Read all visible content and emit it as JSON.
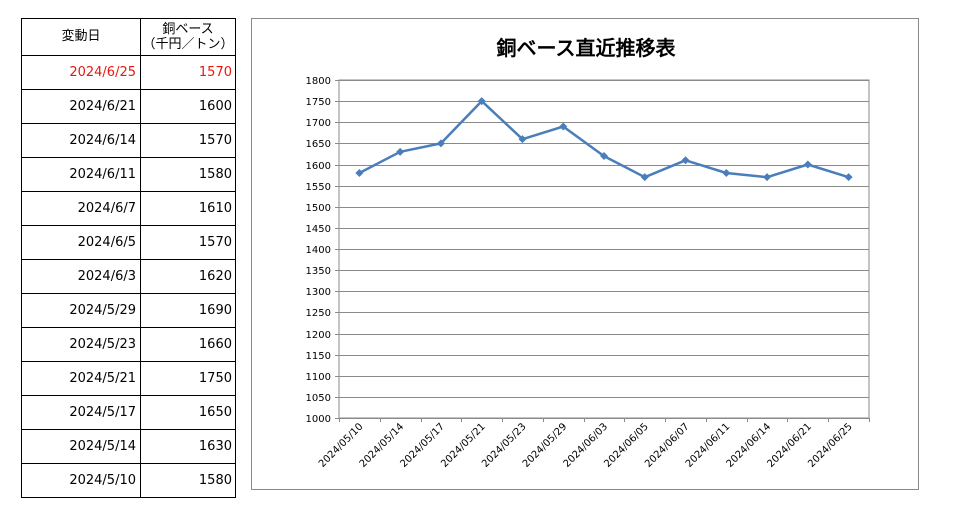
{
  "table": {
    "header_date": "変動日",
    "header_value_line1": "銅ベース",
    "header_value_line2": "（千円／トン）",
    "rows": [
      {
        "date": "2024/6/25",
        "value": "1570"
      },
      {
        "date": "2024/6/21",
        "value": "1600"
      },
      {
        "date": "2024/6/14",
        "value": "1570"
      },
      {
        "date": "2024/6/11",
        "value": "1580"
      },
      {
        "date": "2024/6/7",
        "value": "1610"
      },
      {
        "date": "2024/6/5",
        "value": "1570"
      },
      {
        "date": "2024/6/3",
        "value": "1620"
      },
      {
        "date": "2024/5/29",
        "value": "1690"
      },
      {
        "date": "2024/5/23",
        "value": "1660"
      },
      {
        "date": "2024/5/21",
        "value": "1750"
      },
      {
        "date": "2024/5/17",
        "value": "1650"
      },
      {
        "date": "2024/5/14",
        "value": "1630"
      },
      {
        "date": "2024/5/10",
        "value": "1580"
      }
    ],
    "highlight_color": "#e8170f"
  },
  "chart_data": {
    "type": "line",
    "title": "銅ベース直近推移表",
    "xlabel": "",
    "ylabel": "",
    "categories": [
      "2024/05/10",
      "2024/05/14",
      "2024/05/17",
      "2024/05/21",
      "2024/05/23",
      "2024/05/29",
      "2024/06/03",
      "2024/06/05",
      "2024/06/07",
      "2024/06/11",
      "2024/06/14",
      "2024/06/21",
      "2024/06/25"
    ],
    "series": [
      {
        "values": [
          1580,
          1630,
          1650,
          1750,
          1660,
          1690,
          1620,
          1570,
          1610,
          1580,
          1570,
          1600,
          1570
        ],
        "color": "#4a7ebb"
      }
    ],
    "ylim": [
      1000,
      1800
    ],
    "ytick_step": 50,
    "grid": true,
    "legend": "none",
    "marker": "diamond"
  }
}
